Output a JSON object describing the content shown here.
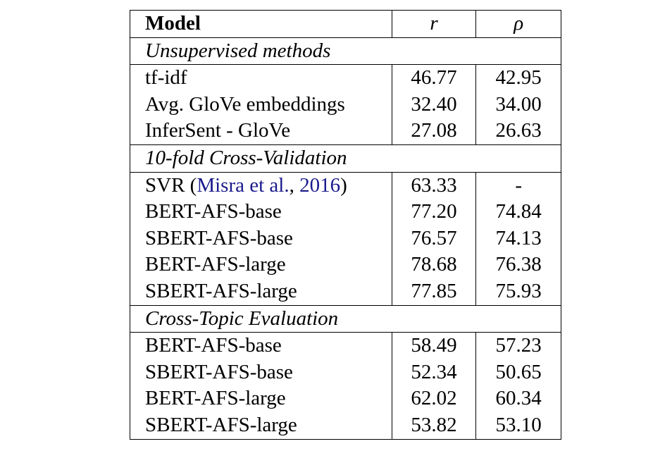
{
  "header": {
    "model": "Model",
    "r": "r",
    "rho": "ρ"
  },
  "sections": {
    "unsupervised": {
      "title": "Unsupervised methods",
      "rows": [
        {
          "model": "tf-idf",
          "r": "46.77",
          "rho": "42.95"
        },
        {
          "model": "Avg. GloVe embeddings",
          "r": "32.40",
          "rho": "34.00"
        },
        {
          "model": "InferSent - GloVe",
          "r": "27.08",
          "rho": "26.63"
        }
      ]
    },
    "cross_validation": {
      "title": "10-fold Cross-Validation",
      "svr": {
        "prefix": "SVR (",
        "cite_author": "Misra et al.",
        "sep": ", ",
        "cite_year": "2016",
        "suffix": ")",
        "r": "63.33",
        "rho": "-"
      },
      "rows": [
        {
          "model": "BERT-AFS-base",
          "r": "77.20",
          "rho": "74.84"
        },
        {
          "model": "SBERT-AFS-base",
          "r": "76.57",
          "rho": "74.13"
        },
        {
          "model": "BERT-AFS-large",
          "r": "78.68",
          "rho": "76.38"
        },
        {
          "model": "SBERT-AFS-large",
          "r": "77.85",
          "rho": "75.93"
        }
      ]
    },
    "cross_topic": {
      "title": "Cross-Topic Evaluation",
      "rows": [
        {
          "model": "BERT-AFS-base",
          "r": "58.49",
          "rho": "57.23"
        },
        {
          "model": "SBERT-AFS-base",
          "r": "52.34",
          "rho": "50.65"
        },
        {
          "model": "BERT-AFS-large",
          "r": "62.02",
          "rho": "60.34"
        },
        {
          "model": "SBERT-AFS-large",
          "r": "53.82",
          "rho": "53.10"
        }
      ]
    }
  }
}
